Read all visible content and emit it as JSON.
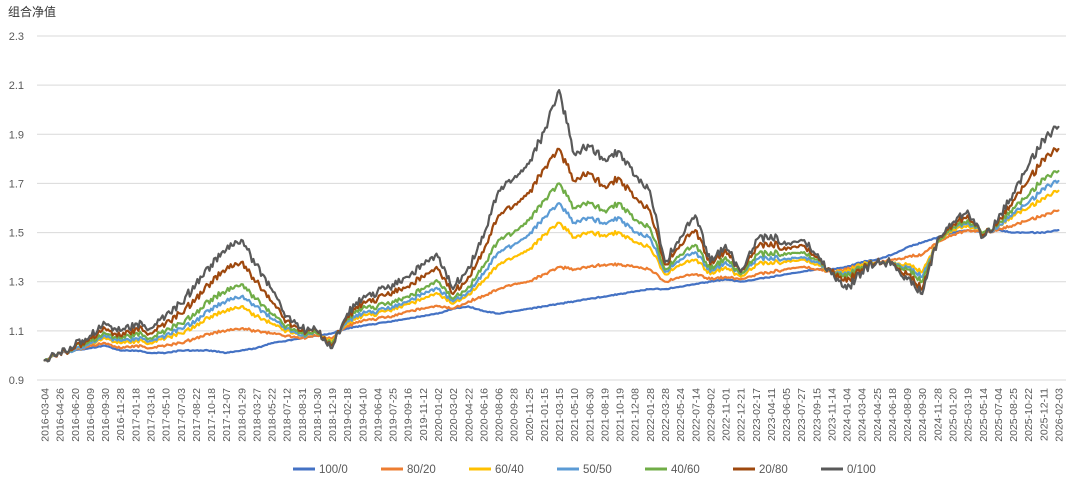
{
  "chart_data": {
    "type": "line",
    "ylabel": "组合净值",
    "xlabel": "",
    "ylim": [
      0.9,
      2.3
    ],
    "yticks": [
      "0.9",
      "1.1",
      "1.3",
      "1.5",
      "1.7",
      "1.9",
      "2.1",
      "2.3"
    ],
    "grid": true,
    "legend_position": "bottom",
    "x_ticks": [
      "2016-03-04",
      "2016-04-26",
      "2016-06-20",
      "2016-08-09",
      "2016-09-30",
      "2016-11-28",
      "2017-01-18",
      "2017-03-16",
      "2017-05-10",
      "2017-07-03",
      "2017-08-22",
      "2017-10-18",
      "2017-12-07",
      "2018-01-29",
      "2018-03-27",
      "2018-05-22",
      "2018-07-12",
      "2018-08-31",
      "2018-10-30",
      "2018-12-19",
      "2019-02-18",
      "2019-04-10",
      "2019-06-04",
      "2019-07-25",
      "2019-09-16",
      "2019-11-12",
      "2020-01-02",
      "2020-03-02",
      "2020-04-22",
      "2020-06-16",
      "2020-08-06",
      "2020-09-28",
      "2020-11-25",
      "2021-01-15",
      "2021-03-15",
      "2021-05-10",
      "2021-06-30",
      "2021-08-19",
      "2021-10-19",
      "2021-12-08",
      "2022-01-28",
      "2022-03-28",
      "2022-05-24",
      "2022-07-14",
      "2022-09-02",
      "2022-11-01",
      "2022-12-21",
      "2023-02-17",
      "2023-04-11",
      "2023-06-05",
      "2023-07-27",
      "2023-09-15",
      "2023-11-14",
      "2024-01-04",
      "2024-03-04",
      "2024-04-25",
      "2024-06-18",
      "2024-08-09",
      "2024-09-30",
      "2024-11-28",
      "2025-01-20",
      "2025-03-19",
      "2025-05-14",
      "2025-07-04",
      "2025-08-25",
      "2025-10-22",
      "2025-12-11",
      "2026-02-03"
    ],
    "series": [
      {
        "name": "100/0",
        "color": "#4472c4",
        "values": [
          0.98,
          1.01,
          1.02,
          1.03,
          1.04,
          1.02,
          1.02,
          1.01,
          1.01,
          1.02,
          1.02,
          1.02,
          1.01,
          1.02,
          1.03,
          1.05,
          1.06,
          1.07,
          1.08,
          1.09,
          1.11,
          1.12,
          1.13,
          1.14,
          1.15,
          1.16,
          1.17,
          1.19,
          1.2,
          1.18,
          1.17,
          1.18,
          1.19,
          1.2,
          1.21,
          1.22,
          1.23,
          1.24,
          1.25,
          1.26,
          1.27,
          1.27,
          1.28,
          1.29,
          1.3,
          1.31,
          1.3,
          1.31,
          1.32,
          1.33,
          1.34,
          1.35,
          1.35,
          1.36,
          1.38,
          1.39,
          1.41,
          1.44,
          1.46,
          1.48,
          1.5,
          1.51,
          1.5,
          1.51,
          1.5,
          1.5,
          1.5,
          1.51
        ]
      },
      {
        "name": "80/20",
        "color": "#ed7d31",
        "values": [
          0.98,
          1.01,
          1.02,
          1.04,
          1.05,
          1.03,
          1.04,
          1.03,
          1.04,
          1.05,
          1.07,
          1.09,
          1.1,
          1.11,
          1.1,
          1.09,
          1.08,
          1.07,
          1.08,
          1.07,
          1.12,
          1.14,
          1.15,
          1.16,
          1.18,
          1.19,
          1.2,
          1.19,
          1.22,
          1.24,
          1.27,
          1.29,
          1.3,
          1.33,
          1.36,
          1.35,
          1.36,
          1.37,
          1.37,
          1.36,
          1.35,
          1.3,
          1.32,
          1.33,
          1.31,
          1.32,
          1.31,
          1.33,
          1.34,
          1.35,
          1.36,
          1.35,
          1.34,
          1.35,
          1.37,
          1.38,
          1.39,
          1.4,
          1.41,
          1.46,
          1.49,
          1.51,
          1.5,
          1.51,
          1.53,
          1.55,
          1.57,
          1.59
        ]
      },
      {
        "name": "60/40",
        "color": "#ffc000",
        "values": [
          0.98,
          1.01,
          1.02,
          1.05,
          1.07,
          1.05,
          1.06,
          1.05,
          1.07,
          1.09,
          1.12,
          1.16,
          1.18,
          1.2,
          1.16,
          1.13,
          1.1,
          1.08,
          1.09,
          1.06,
          1.13,
          1.16,
          1.17,
          1.19,
          1.21,
          1.23,
          1.25,
          1.21,
          1.25,
          1.3,
          1.37,
          1.4,
          1.43,
          1.49,
          1.54,
          1.48,
          1.5,
          1.49,
          1.5,
          1.46,
          1.44,
          1.33,
          1.37,
          1.39,
          1.33,
          1.36,
          1.32,
          1.37,
          1.38,
          1.38,
          1.39,
          1.37,
          1.34,
          1.34,
          1.37,
          1.38,
          1.38,
          1.37,
          1.34,
          1.46,
          1.51,
          1.53,
          1.5,
          1.52,
          1.57,
          1.6,
          1.64,
          1.67
        ]
      },
      {
        "name": "50/50",
        "color": "#5b9bd5",
        "values": [
          0.98,
          1.01,
          1.02,
          1.05,
          1.08,
          1.06,
          1.07,
          1.06,
          1.08,
          1.11,
          1.14,
          1.19,
          1.22,
          1.24,
          1.2,
          1.15,
          1.11,
          1.08,
          1.09,
          1.05,
          1.14,
          1.17,
          1.18,
          1.2,
          1.22,
          1.25,
          1.27,
          1.22,
          1.26,
          1.33,
          1.42,
          1.45,
          1.49,
          1.56,
          1.62,
          1.54,
          1.56,
          1.54,
          1.56,
          1.5,
          1.48,
          1.34,
          1.39,
          1.42,
          1.34,
          1.38,
          1.33,
          1.39,
          1.4,
          1.39,
          1.4,
          1.38,
          1.34,
          1.33,
          1.36,
          1.38,
          1.38,
          1.36,
          1.32,
          1.46,
          1.52,
          1.54,
          1.5,
          1.52,
          1.58,
          1.62,
          1.68,
          1.71
        ]
      },
      {
        "name": "40/60",
        "color": "#70ad47",
        "values": [
          0.98,
          1.01,
          1.03,
          1.06,
          1.09,
          1.07,
          1.09,
          1.07,
          1.1,
          1.13,
          1.17,
          1.23,
          1.26,
          1.29,
          1.23,
          1.17,
          1.12,
          1.09,
          1.09,
          1.05,
          1.15,
          1.19,
          1.2,
          1.22,
          1.24,
          1.27,
          1.3,
          1.23,
          1.28,
          1.36,
          1.47,
          1.5,
          1.55,
          1.63,
          1.7,
          1.6,
          1.62,
          1.59,
          1.62,
          1.55,
          1.52,
          1.35,
          1.41,
          1.45,
          1.35,
          1.4,
          1.33,
          1.41,
          1.42,
          1.41,
          1.42,
          1.39,
          1.34,
          1.32,
          1.36,
          1.38,
          1.38,
          1.35,
          1.3,
          1.46,
          1.52,
          1.55,
          1.5,
          1.53,
          1.6,
          1.65,
          1.72,
          1.75
        ]
      },
      {
        "name": "20/80",
        "color": "#9e480e",
        "values": [
          0.98,
          1.01,
          1.03,
          1.07,
          1.11,
          1.08,
          1.11,
          1.09,
          1.13,
          1.17,
          1.23,
          1.3,
          1.35,
          1.38,
          1.3,
          1.22,
          1.14,
          1.1,
          1.1,
          1.04,
          1.16,
          1.21,
          1.23,
          1.26,
          1.28,
          1.32,
          1.35,
          1.25,
          1.32,
          1.42,
          1.57,
          1.61,
          1.66,
          1.76,
          1.84,
          1.71,
          1.74,
          1.69,
          1.72,
          1.64,
          1.59,
          1.37,
          1.45,
          1.51,
          1.37,
          1.43,
          1.34,
          1.44,
          1.46,
          1.43,
          1.45,
          1.4,
          1.34,
          1.3,
          1.35,
          1.38,
          1.38,
          1.33,
          1.27,
          1.47,
          1.53,
          1.57,
          1.49,
          1.54,
          1.63,
          1.71,
          1.8,
          1.84
        ]
      },
      {
        "name": "0/100",
        "color": "#595959",
        "values": [
          0.98,
          1.01,
          1.04,
          1.08,
          1.13,
          1.1,
          1.13,
          1.11,
          1.16,
          1.21,
          1.29,
          1.37,
          1.43,
          1.47,
          1.37,
          1.27,
          1.16,
          1.11,
          1.1,
          1.03,
          1.17,
          1.23,
          1.26,
          1.29,
          1.32,
          1.37,
          1.4,
          1.27,
          1.36,
          1.48,
          1.67,
          1.72,
          1.78,
          1.91,
          2.08,
          1.82,
          1.85,
          1.8,
          1.83,
          1.73,
          1.67,
          1.38,
          1.48,
          1.57,
          1.38,
          1.45,
          1.34,
          1.47,
          1.49,
          1.45,
          1.47,
          1.41,
          1.33,
          1.27,
          1.34,
          1.38,
          1.38,
          1.31,
          1.25,
          1.47,
          1.54,
          1.59,
          1.48,
          1.55,
          1.66,
          1.77,
          1.88,
          1.93
        ]
      }
    ]
  }
}
